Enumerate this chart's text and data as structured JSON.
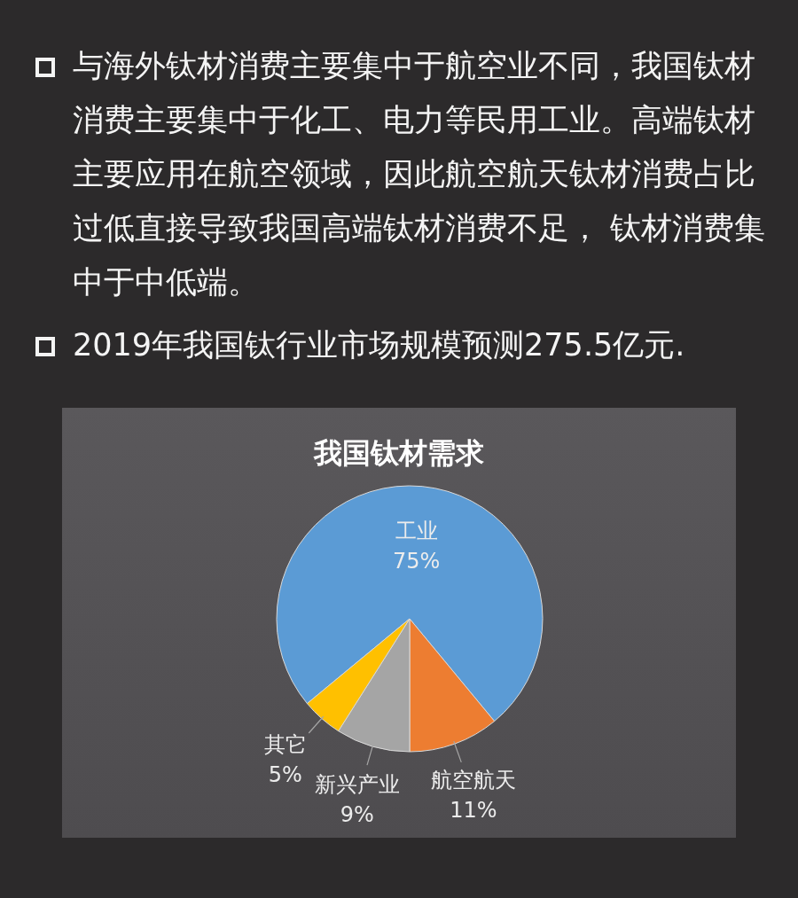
{
  "chart_data": {
    "type": "pie",
    "title": "我国钛材需求",
    "categories": [
      "工业",
      "航空航天",
      "新兴产业",
      "其它"
    ],
    "values": [
      75,
      11,
      9,
      5
    ],
    "value_labels": [
      "75%",
      "11%",
      "9%",
      "5%"
    ],
    "colors": [
      "#5b9bd5",
      "#ed7d31",
      "#a5a5a5",
      "#ffc000"
    ],
    "annotations": [
      "与海外钛材消费主要集中于航空业不同，我国钛材消费主要集中于化工、电力等民用工业。高端钛材主要应用在航空领域，因此航空航天钛材消费占比过低直接导致我国高端钛材消费不足， 钛材消费集中于中低端。",
      "2019年我国钛行业市场规模预测275.5亿元."
    ]
  }
}
